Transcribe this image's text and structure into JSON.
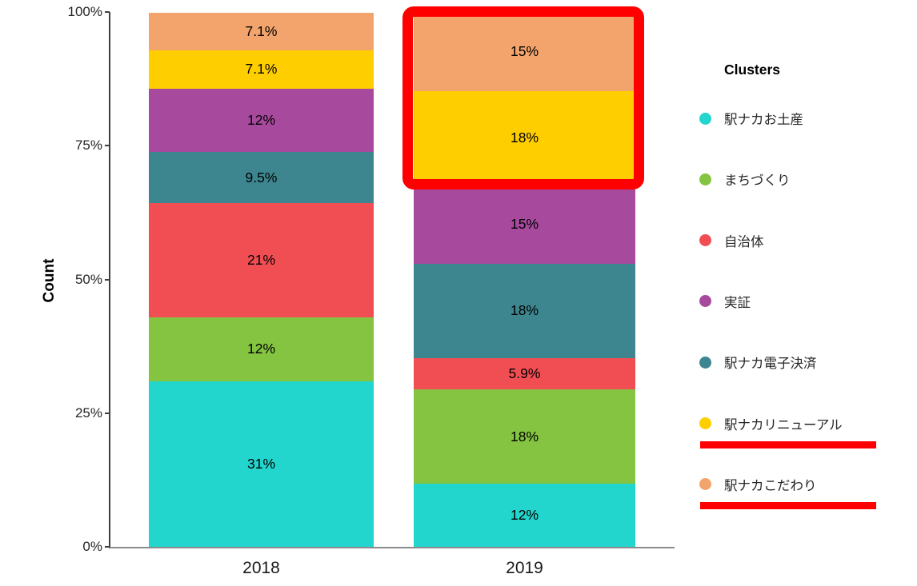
{
  "figure": {
    "y_axis_title": "Count",
    "legend_title": "Clusters"
  },
  "chart_data": {
    "type": "bar",
    "subtype": "100%-stacked-column",
    "title": "",
    "xlabel": "",
    "ylabel": "Count",
    "ylim": [
      0,
      100
    ],
    "grid": false,
    "y_ticks": [
      {
        "label": "0%",
        "value": 0
      },
      {
        "label": "25%",
        "value": 25
      },
      {
        "label": "50%",
        "value": 50
      },
      {
        "label": "75%",
        "value": 75
      },
      {
        "label": "100%",
        "value": 100
      }
    ],
    "categories": [
      "2018",
      "2019"
    ],
    "series": [
      {
        "name": "駅ナカお土産",
        "color": "#22d5cd",
        "values": [
          31.0,
          11.8
        ],
        "labels": [
          "31%",
          "12%"
        ]
      },
      {
        "name": "まちづくり",
        "color": "#84c441",
        "values": [
          11.9,
          17.6
        ],
        "labels": [
          "12%",
          "18%"
        ]
      },
      {
        "name": "自治体",
        "color": "#f14e53",
        "values": [
          21.4,
          5.9
        ],
        "labels": [
          "21%",
          "5.9%"
        ]
      },
      {
        "name": "駅ナカ電子決済",
        "color": "#3d868f",
        "values": [
          9.5,
          17.6
        ],
        "labels": [
          "9.5%",
          "18%"
        ]
      },
      {
        "name": "実証",
        "color": "#a74a9e",
        "values": [
          11.9,
          14.7
        ],
        "labels": [
          "12%",
          "15%"
        ]
      },
      {
        "name": "駅ナカリニューアル",
        "color": "#ffce00",
        "values": [
          7.1,
          17.6
        ],
        "labels": [
          "7.1%",
          "18%"
        ]
      },
      {
        "name": "駅ナカこだわり",
        "color": "#f3a46c",
        "values": [
          7.1,
          14.7
        ],
        "labels": [
          "7.1%",
          "15%"
        ]
      }
    ],
    "legend": {
      "title": "Clusters",
      "position": "right",
      "items": [
        {
          "label": "駅ナカお土産",
          "color": "#22d5cd",
          "underlined": false
        },
        {
          "label": "まちづくり",
          "color": "#84c441",
          "underlined": false
        },
        {
          "label": "自治体",
          "color": "#f14e53",
          "underlined": false
        },
        {
          "label": "実証",
          "color": "#a74a9e",
          "underlined": false
        },
        {
          "label": "駅ナカ電子決済",
          "color": "#3d868f",
          "underlined": false
        },
        {
          "label": "駅ナカリニューアル",
          "color": "#ffce00",
          "underlined": true
        },
        {
          "label": "駅ナカこだわり",
          "color": "#f3a46c",
          "underlined": true
        }
      ]
    },
    "annotations": {
      "highlight_box": {
        "color": "#ff0000",
        "target": "2019 bar top two segments: 駅ナカこだわり 15% and 駅ナカリニューアル 18%"
      },
      "legend_underlines": [
        {
          "under": "駅ナカリニューアル",
          "color": "#ff0000"
        },
        {
          "under": "駅ナカこだわり",
          "color": "#ff0000"
        }
      ]
    }
  }
}
